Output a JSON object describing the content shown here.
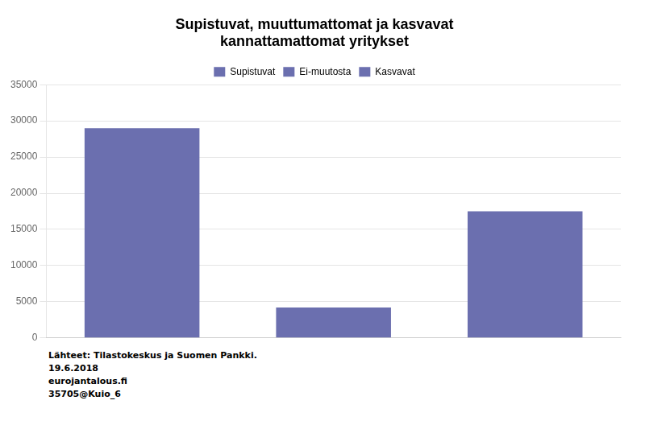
{
  "chart_data": {
    "type": "bar",
    "title": "Supistuvat, muuttumattomat ja kasvavat\nkannattamattomat yritykset",
    "categories": [
      "Supistuvat",
      "Ei-muutosta",
      "Kasvavat"
    ],
    "values": [
      29000,
      4200,
      17500
    ],
    "color": "#6B6FAF",
    "ylim": [
      0,
      35000
    ],
    "yticks": [
      0,
      5000,
      10000,
      15000,
      20000,
      25000,
      30000,
      35000
    ],
    "grid": true,
    "legend": "top",
    "tick_labels": "y",
    "annotations": [
      "Lähteet:  Tilastokeskus ja Suomen Pankki.",
      "19.6.2018",
      "eurojantalous.fi",
      "35705@Kuio_6"
    ]
  }
}
